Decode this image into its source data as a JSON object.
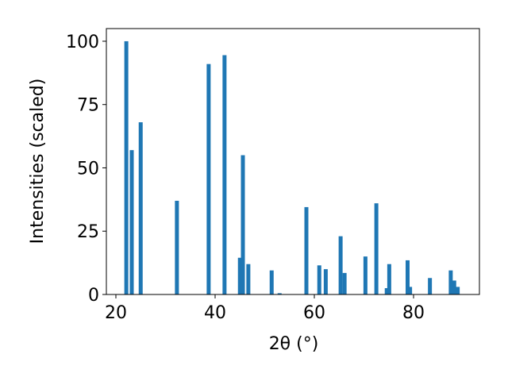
{
  "chart_data": {
    "type": "bar",
    "xlabel": "2θ (°)",
    "ylabel": "Intensities (scaled)",
    "x": [
      22.1,
      23.2,
      25.0,
      32.3,
      38.7,
      41.9,
      45.0,
      45.6,
      46.7,
      51.4,
      53.0,
      58.4,
      61.0,
      62.3,
      65.3,
      66.1,
      70.3,
      72.5,
      74.6,
      75.1,
      78.8,
      79.3,
      83.3,
      87.5,
      88.2,
      88.9
    ],
    "values": [
      100,
      57,
      68,
      37,
      91,
      94.5,
      14.5,
      55,
      12,
      9.5,
      0.5,
      34.5,
      11.5,
      10,
      23,
      8.5,
      15,
      36,
      2.5,
      12,
      13.5,
      3,
      6.5,
      9.5,
      5.5,
      3
    ],
    "color": "#1f77b4",
    "xlim": [
      18.08,
      93.28
    ],
    "ylim": [
      0,
      105
    ],
    "xticks": [
      20,
      40,
      60,
      80
    ],
    "yticks": [
      0,
      25,
      50,
      75,
      100
    ],
    "grid": false
  }
}
